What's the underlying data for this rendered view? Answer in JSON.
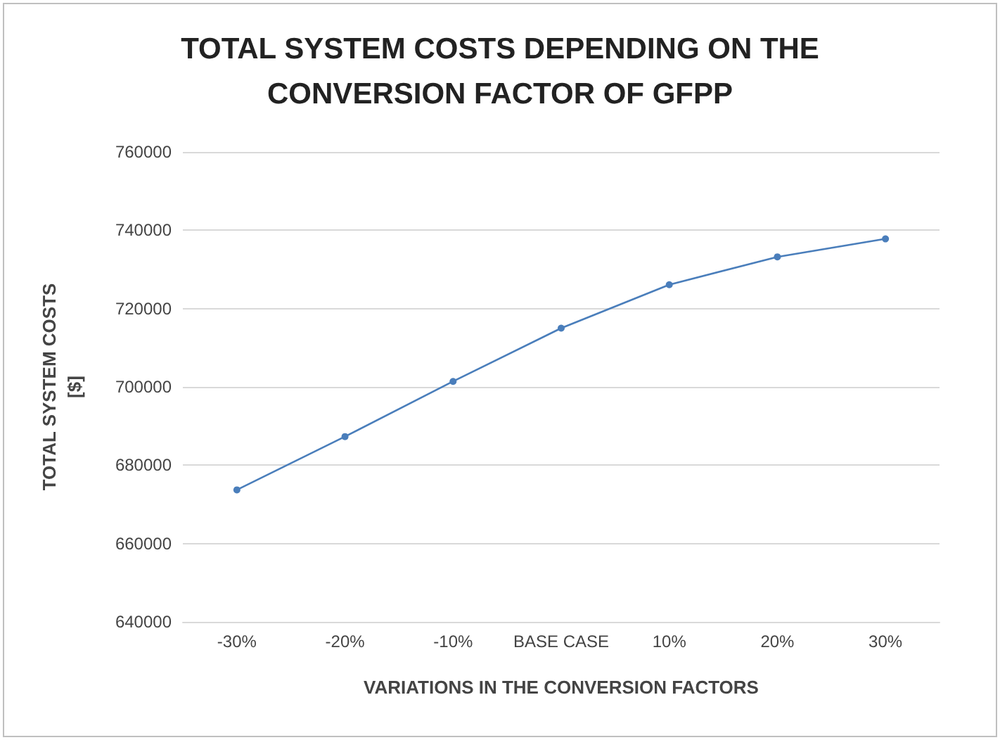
{
  "chart_data": {
    "type": "line",
    "title": "TOTAL SYSTEM COSTS DEPENDING ON THE\nCONVERSION FACTOR OF GFPP",
    "xlabel": "VARIATIONS IN THE CONVERSION FACTORS",
    "ylabel": "TOTAL SYSTEM COSTS\n[$]",
    "categories": [
      "-30%",
      "-20%",
      "-10%",
      "BASE CASE",
      "10%",
      "20%",
      "30%"
    ],
    "series": [
      {
        "color": "#4a7ebb",
        "values": [
          673700,
          687300,
          701400,
          715000,
          726100,
          733200,
          737800
        ]
      }
    ],
    "ylim": [
      640000,
      760000
    ],
    "yticks": [
      640000,
      660000,
      680000,
      700000,
      720000,
      740000,
      760000
    ],
    "grid": "y",
    "marker": "circle",
    "line_style": "solid"
  }
}
